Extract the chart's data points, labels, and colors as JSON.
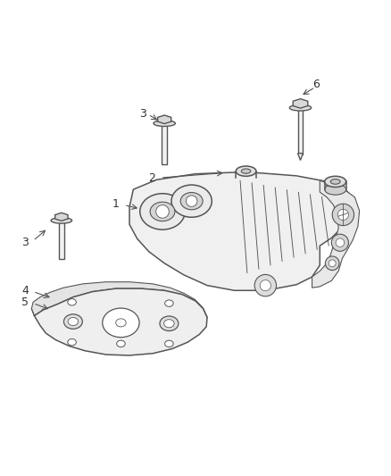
{
  "bg_color": "#ffffff",
  "line_color": "#555555",
  "label_color": "#333333",
  "figsize": [
    4.38,
    5.33
  ],
  "dpi": 100
}
